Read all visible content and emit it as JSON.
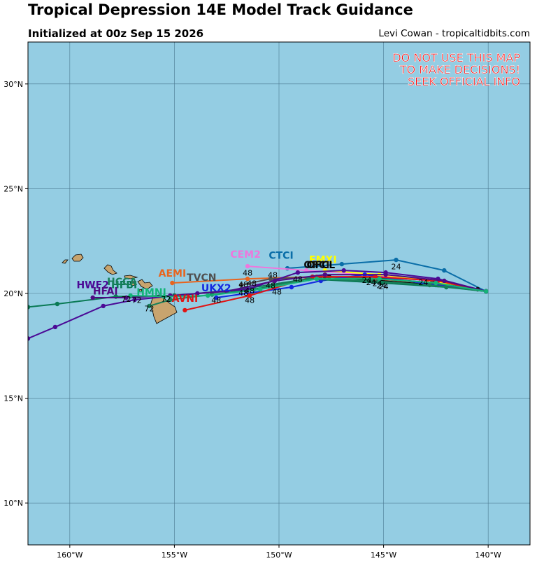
{
  "header": {
    "title": "Tropical Depression 14E Model Track Guidance",
    "subtitle": "Initialized at 00z Sep 15 2026",
    "credit": "Levi Cowan - tropicaltidbits.com"
  },
  "warning": [
    "DO NOT USE THIS MAP",
    "TO MAKE DECISIONS!",
    "SEEK OFFICIAL INFO"
  ],
  "map": {
    "projection": "plate-carree",
    "lon_range": [
      -162,
      -138
    ],
    "lat_range": [
      8,
      32
    ],
    "ocean_color": "#94cde3",
    "land_color": "#c8a46e",
    "lon_ticks": [
      {
        "value": -160,
        "label": "160°W"
      },
      {
        "value": -155,
        "label": "155°W"
      },
      {
        "value": -150,
        "label": "150°W"
      },
      {
        "value": -145,
        "label": "145°W"
      },
      {
        "value": -140,
        "label": "140°W"
      }
    ],
    "lat_ticks": [
      {
        "value": 10,
        "label": "10°N"
      },
      {
        "value": 15,
        "label": "15°N"
      },
      {
        "value": 20,
        "label": "20°N"
      },
      {
        "value": 25,
        "label": "25°N"
      },
      {
        "value": 30,
        "label": "30°N"
      }
    ]
  },
  "models": [
    {
      "name": "CTCI",
      "color": "#0a6ea8",
      "label": "CTCI",
      "label_lon": -149.9,
      "label_lat": 21.65,
      "track": [
        [
          -140.1,
          20.1
        ],
        [
          -142.1,
          21.1
        ],
        [
          -144.4,
          21.6
        ],
        [
          -147.0,
          21.4
        ],
        [
          -149.6,
          21.2
        ]
      ]
    },
    {
      "name": "CEM2",
      "color": "#ee77dd",
      "label": "CEM2",
      "label_lon": -151.6,
      "label_lat": 21.7,
      "track": [
        [
          -140.1,
          20.1
        ],
        [
          -142.8,
          20.6
        ],
        [
          -145.8,
          20.9
        ],
        [
          -148.7,
          21.1
        ],
        [
          -151.5,
          21.3
        ]
      ]
    },
    {
      "name": "EMXI",
      "color": "#ffff00",
      "label": "EMXI",
      "label_lon": -147.9,
      "label_lat": 21.45,
      "track": [
        [
          -140.1,
          20.1
        ],
        [
          -142.6,
          20.6
        ],
        [
          -145.2,
          20.9
        ],
        [
          -147.8,
          21.1
        ]
      ]
    },
    {
      "name": "OFCL",
      "color": "#000000",
      "label": "OFCL",
      "label_lon": -148.0,
      "label_lat": 21.2,
      "track": [
        [
          -140.1,
          20.1
        ],
        [
          -142.4,
          20.4
        ],
        [
          -145.1,
          20.6
        ],
        [
          -147.8,
          20.8
        ]
      ]
    },
    {
      "name": "OFCI",
      "color": "#111111",
      "label": "OFCI",
      "label_lon": -148.2,
      "label_lat": 21.2,
      "track": [
        [
          -140.1,
          20.1
        ],
        [
          -140.5,
          20.2
        ],
        [
          -142.6,
          20.5
        ],
        [
          -145.0,
          20.7
        ],
        [
          -147.6,
          20.8
        ]
      ]
    },
    {
      "name": "AEMI",
      "color": "#e8641e",
      "label": "AEMI",
      "label_lon": -155.1,
      "label_lat": 20.8,
      "track": [
        [
          -140.1,
          20.1
        ],
        [
          -142.9,
          20.5
        ],
        [
          -145.4,
          20.7
        ],
        [
          -148.2,
          20.8
        ],
        [
          -151.5,
          20.7
        ],
        [
          -155.1,
          20.5
        ]
      ]
    },
    {
      "name": "TVCN",
      "color": "#505050",
      "label": "TVCN",
      "label_lon": -153.7,
      "label_lat": 20.6,
      "track": [
        [
          -140.1,
          20.1
        ],
        [
          -142.7,
          20.5
        ],
        [
          -145.3,
          20.7
        ],
        [
          -148.0,
          20.8
        ],
        [
          -150.4,
          20.7
        ],
        [
          -151.8,
          20.4
        ]
      ]
    },
    {
      "name": "UKX2",
      "color": "#1428e0",
      "label": "UKX2",
      "label_lon": -153.0,
      "label_lat": 20.1,
      "track": [
        [
          -140.1,
          20.1
        ],
        [
          -142.5,
          20.4
        ],
        [
          -145.9,
          20.9
        ],
        [
          -148.0,
          20.6
        ],
        [
          -149.4,
          20.3
        ],
        [
          -153.0,
          19.8
        ]
      ]
    },
    {
      "name": "AVNI",
      "color": "#e01414",
      "label": "AVNI",
      "label_lon": -154.5,
      "label_lat": 19.6,
      "track": [
        [
          -140.1,
          20.1
        ],
        [
          -142.4,
          20.6
        ],
        [
          -145.4,
          20.8
        ],
        [
          -148.4,
          20.8
        ],
        [
          -151.4,
          19.9
        ],
        [
          -154.5,
          19.2
        ]
      ]
    },
    {
      "name": "HFBI",
      "color": "#0a7a55",
      "label": "HFBI",
      "label_lon": -157.4,
      "label_lat": 20.25,
      "track": [
        [
          -140.1,
          20.1
        ],
        [
          -142.0,
          20.3
        ],
        [
          -145.1,
          20.5
        ],
        [
          -148.6,
          20.7
        ],
        [
          -151.8,
          20.2
        ],
        [
          -155.0,
          19.9
        ],
        [
          -157.8,
          19.85
        ],
        [
          -160.6,
          19.5
        ],
        [
          -162.0,
          19.35
        ]
      ]
    },
    {
      "name": "HCCA",
      "color": "#18805a",
      "label": "HCCA",
      "label_lon": -157.5,
      "label_lat": 20.4,
      "track": [
        [
          -140.1,
          20.1
        ],
        [
          -142.8,
          20.4
        ],
        [
          -145.6,
          20.6
        ],
        [
          -148.6,
          20.7
        ],
        [
          -151.2,
          20.2
        ],
        [
          -153.2,
          19.95
        ],
        [
          -155.2,
          19.7
        ],
        [
          -156.2,
          19.4
        ]
      ]
    },
    {
      "name": "HWF2",
      "color": "#4b0a96",
      "label": "HWF2",
      "label_lon": -158.9,
      "label_lat": 20.25,
      "track": [
        [
          -140.1,
          20.1
        ],
        [
          -142.4,
          20.7
        ],
        [
          -144.9,
          21.0
        ],
        [
          -146.9,
          21.1
        ],
        [
          -149.1,
          21.0
        ],
        [
          -151.5,
          20.2
        ],
        [
          -153.9,
          20.0
        ],
        [
          -156.9,
          19.7
        ],
        [
          -158.4,
          19.4
        ],
        [
          -160.7,
          18.4
        ],
        [
          -162.0,
          17.85
        ]
      ]
    },
    {
      "name": "HFAI",
      "color": "#500a84",
      "label": "HFAI",
      "label_lon": -158.3,
      "label_lat": 19.95,
      "track": [
        [
          -140.1,
          20.1
        ],
        [
          -142.1,
          20.6
        ],
        [
          -144.9,
          20.9
        ],
        [
          -147.8,
          20.9
        ],
        [
          -150.2,
          20.6
        ],
        [
          -152.5,
          20.1
        ],
        [
          -155.2,
          19.9
        ],
        [
          -157.3,
          19.8
        ],
        [
          -158.9,
          19.8
        ]
      ]
    },
    {
      "name": "HMNI",
      "color": "#14b478",
      "label": "HMNI",
      "label_lon": -156.1,
      "label_lat": 19.9,
      "track": [
        [
          -140.1,
          20.1
        ],
        [
          -142.5,
          20.5
        ],
        [
          -145.2,
          20.7
        ],
        [
          -148.2,
          20.7
        ],
        [
          -150.9,
          20.2
        ],
        [
          -153.4,
          19.9
        ],
        [
          -155.5,
          19.85
        ],
        [
          -157.1,
          19.9
        ]
      ]
    }
  ],
  "hour_labels": [
    {
      "text": "24",
      "lon": -144.4,
      "lat": 21.15
    },
    {
      "text": "24",
      "lon": -145.8,
      "lat": 20.5
    },
    {
      "text": "24",
      "lon": -145.1,
      "lat": 20.25
    },
    {
      "text": "24",
      "lon": -143.1,
      "lat": 20.4
    },
    {
      "text": "24",
      "lon": -145.3,
      "lat": 20.35
    },
    {
      "text": "24",
      "lon": -145.0,
      "lat": 20.2
    },
    {
      "text": "24",
      "lon": -145.6,
      "lat": 20.4
    },
    {
      "text": "48",
      "lon": -151.5,
      "lat": 20.85
    },
    {
      "text": "48",
      "lon": -150.3,
      "lat": 20.75
    },
    {
      "text": "48",
      "lon": -149.1,
      "lat": 20.55
    },
    {
      "text": "48",
      "lon": -151.7,
      "lat": 20.3
    },
    {
      "text": "48",
      "lon": -151.3,
      "lat": 20.35
    },
    {
      "text": "48",
      "lon": -150.4,
      "lat": 20.25
    },
    {
      "text": "48",
      "lon": -151.4,
      "lat": 20.0
    },
    {
      "text": "48",
      "lon": -151.7,
      "lat": 19.9
    },
    {
      "text": "48",
      "lon": -150.1,
      "lat": 19.95
    },
    {
      "text": "48",
      "lon": -153.0,
      "lat": 19.55
    },
    {
      "text": "48",
      "lon": -151.4,
      "lat": 19.55
    },
    {
      "text": "72",
      "lon": -157.3,
      "lat": 19.6
    },
    {
      "text": "72",
      "lon": -156.8,
      "lat": 19.55
    },
    {
      "text": "72",
      "lon": -155.4,
      "lat": 19.6
    },
    {
      "text": "72",
      "lon": -156.2,
      "lat": 19.15
    }
  ]
}
